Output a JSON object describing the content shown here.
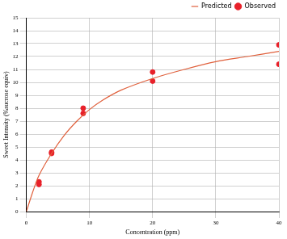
{
  "chart_data": {
    "type": "scatter",
    "x_label": "Concentration (ppm)",
    "y_label": "Sweet Intensity (%sucrose equiv)",
    "xlim": [
      0,
      40
    ],
    "xticks": [
      0,
      10,
      20,
      30,
      40
    ],
    "ylim": [
      0,
      15
    ],
    "yticks": [
      0,
      1,
      2,
      3,
      4,
      5,
      6,
      7,
      8,
      9,
      10,
      11,
      12,
      13,
      14,
      15
    ],
    "grid": true,
    "legend": "top-right",
    "series": [
      {
        "name": "Predicted",
        "type": "line",
        "color": "#e0603c",
        "line_style": "solid",
        "x": [
          0,
          1,
          2,
          4,
          6,
          8,
          10,
          12,
          15,
          20,
          25,
          30,
          35,
          40
        ],
        "values": [
          0,
          1.5,
          2.8,
          4.5,
          5.9,
          7.0,
          7.9,
          8.6,
          9.4,
          10.3,
          11.0,
          11.6,
          12.0,
          12.4
        ]
      },
      {
        "name": "Observed",
        "type": "scatter",
        "color": "#e8212a",
        "marker": "circle",
        "x": [
          2,
          2,
          4,
          4,
          9,
          9,
          20,
          20,
          40,
          40
        ],
        "values": [
          2.3,
          2.1,
          4.6,
          4.5,
          8.0,
          7.6,
          10.8,
          10.1,
          12.9,
          11.4
        ]
      }
    ]
  }
}
